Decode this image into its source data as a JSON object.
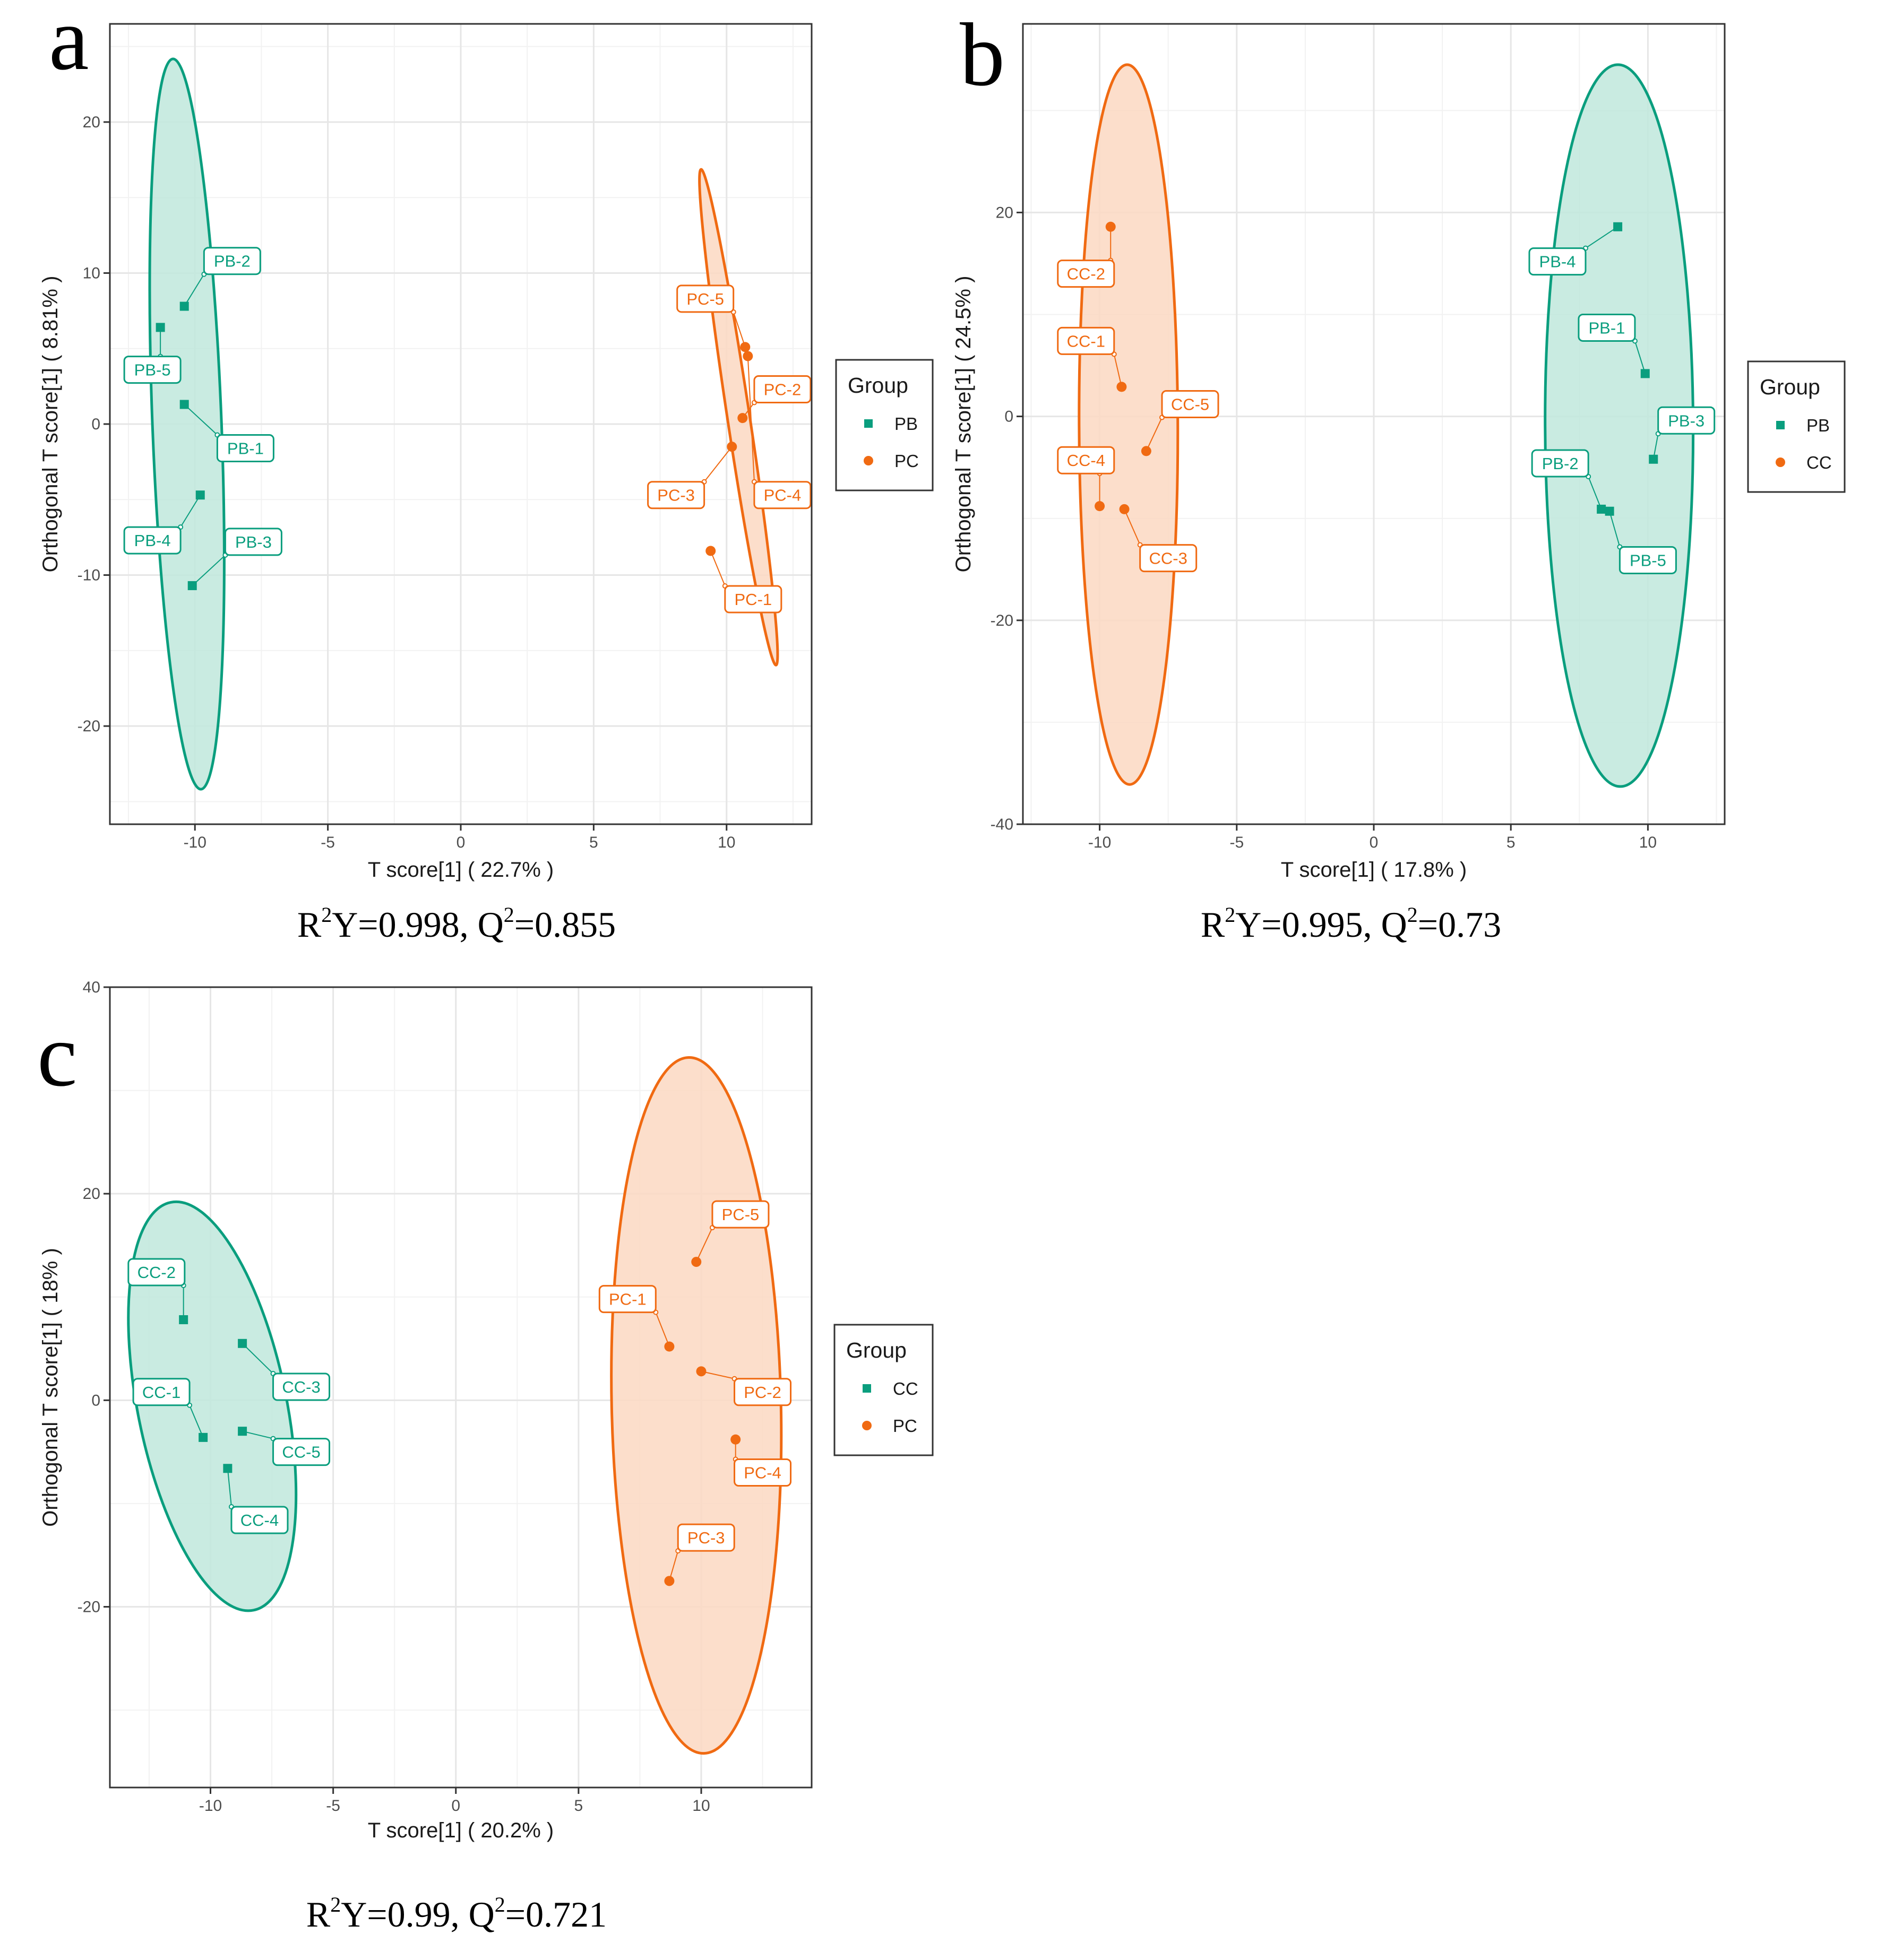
{
  "colors": {
    "teal": "#0a9e7e",
    "tealFill": "#bfe7dc",
    "orange": "#f06a12",
    "orangeFill": "#fcd8c2"
  },
  "chart_data": [
    {
      "type": "scatter",
      "letter": "a",
      "xlabel": "T score[1] ( 22.7% )",
      "ylabel": "Orthogonal T score[1] ( 8.81% )",
      "xlim": [
        -13.2,
        13.2
      ],
      "ylim": [
        -26.5,
        26.5
      ],
      "xticks": [
        -10,
        -5,
        0,
        5,
        10
      ],
      "yticks": [
        -20,
        -10,
        0,
        10,
        20
      ],
      "stats": {
        "r": "R",
        "sup1": "2",
        "mid": "Y=0.998, Q",
        "sup2": "2",
        "end": "=0.855"
      },
      "legend": {
        "title": "Group",
        "entries": [
          {
            "label": "PB",
            "color": "teal",
            "shape": "square"
          },
          {
            "label": "PC",
            "color": "orange",
            "shape": "circle"
          }
        ]
      },
      "ellipses": [
        {
          "group": "PB",
          "color": "teal",
          "cx": -10.3,
          "cy": 0.0,
          "rx": 1.3,
          "ry": 24.2,
          "angle": -2.2
        },
        {
          "group": "PC",
          "color": "orange",
          "cx": 10.45,
          "cy": 0.45,
          "rx": 0.42,
          "ry": 16.6,
          "angle": -8.6
        }
      ],
      "series": [
        {
          "name": "PB",
          "color": "teal",
          "shape": "square",
          "points": [
            {
              "label": "PB-1",
              "x": -10.4,
              "y": 1.3,
              "lx": -8.1,
              "ly": -1.6
            },
            {
              "label": "PB-2",
              "x": -10.4,
              "y": 7.8,
              "lx": -8.6,
              "ly": 10.8
            },
            {
              "label": "PB-3",
              "x": -10.1,
              "y": -10.7,
              "lx": -7.8,
              "ly": -7.8
            },
            {
              "label": "PB-4",
              "x": -9.8,
              "y": -4.7,
              "lx": -11.6,
              "ly": -7.7
            },
            {
              "label": "PB-5",
              "x": -11.3,
              "y": 6.4,
              "lx": -11.6,
              "ly": 3.6
            }
          ]
        },
        {
          "name": "PC",
          "color": "orange",
          "shape": "circle",
          "points": [
            {
              "label": "PC-1",
              "x": 9.4,
              "y": -8.4,
              "lx": 11.0,
              "ly": -11.6
            },
            {
              "label": "PC-2",
              "x": 10.6,
              "y": 0.4,
              "lx": 12.1,
              "ly": 2.3
            },
            {
              "label": "PC-3",
              "x": 10.2,
              "y": -1.5,
              "lx": 8.1,
              "ly": -4.7
            },
            {
              "label": "PC-4",
              "x": 10.8,
              "y": 4.5,
              "lx": 12.1,
              "ly": -4.7
            },
            {
              "label": "PC-5",
              "x": 10.7,
              "y": 5.1,
              "lx": 9.2,
              "ly": 8.3
            }
          ]
        }
      ]
    },
    {
      "type": "scatter",
      "letter": "b",
      "xlabel": "T score[1] ( 17.8% )",
      "ylabel": "Orthogonal T score[1] ( 24.5% )",
      "xlim": [
        -12.8,
        12.8
      ],
      "ylim": [
        -40.0,
        38.5
      ],
      "xticks": [
        -10,
        -5,
        0,
        5,
        10
      ],
      "yticks": [
        -40,
        -20,
        0,
        20
      ],
      "stats": {
        "r": "R",
        "sup1": "2",
        "mid": "Y=0.995, Q",
        "sup2": "2",
        "end": "=0.73"
      },
      "legend": {
        "title": "Group",
        "entries": [
          {
            "label": "PB",
            "color": "teal",
            "shape": "square"
          },
          {
            "label": "CC",
            "color": "orange",
            "shape": "circle"
          }
        ]
      },
      "ellipses": [
        {
          "group": "CC",
          "color": "orange",
          "cx": -8.95,
          "cy": -0.8,
          "rx": 1.8,
          "ry": 35.3,
          "angle": -0.2
        },
        {
          "group": "PB",
          "color": "teal",
          "cx": 8.95,
          "cy": -0.9,
          "rx": 2.7,
          "ry": 35.4,
          "angle": -0.2
        }
      ],
      "series": [
        {
          "name": "PB",
          "color": "teal",
          "shape": "square",
          "points": [
            {
              "label": "PB-1",
              "x": 9.9,
              "y": 4.2,
              "lx": 8.5,
              "ly": 8.7
            },
            {
              "label": "PB-2",
              "x": 8.3,
              "y": -9.1,
              "lx": 6.8,
              "ly": -4.6
            },
            {
              "label": "PB-3",
              "x": 10.2,
              "y": -4.2,
              "lx": 11.4,
              "ly": -0.4
            },
            {
              "label": "PB-4",
              "x": 8.9,
              "y": 18.6,
              "lx": 6.7,
              "ly": 15.2
            },
            {
              "label": "PB-5",
              "x": 8.6,
              "y": -9.3,
              "lx": 10.0,
              "ly": -14.1
            }
          ]
        },
        {
          "name": "CC",
          "color": "orange",
          "shape": "circle",
          "points": [
            {
              "label": "CC-1",
              "x": -9.2,
              "y": 2.9,
              "lx": -10.5,
              "ly": 7.4
            },
            {
              "label": "CC-2",
              "x": -9.6,
              "y": 18.6,
              "lx": -10.5,
              "ly": 14.0
            },
            {
              "label": "CC-3",
              "x": -9.1,
              "y": -9.1,
              "lx": -7.5,
              "ly": -13.9
            },
            {
              "label": "CC-4",
              "x": -10.0,
              "y": -8.8,
              "lx": -10.5,
              "ly": -4.3
            },
            {
              "label": "CC-5",
              "x": -8.3,
              "y": -3.4,
              "lx": -6.7,
              "ly": 1.2
            }
          ]
        }
      ]
    },
    {
      "type": "scatter",
      "letter": "c",
      "xlabel": "T score[1] ( 20.2% )",
      "ylabel": "Orthogonal T score[1] ( 18% )",
      "xlim": [
        -14.1,
        14.5
      ],
      "ylim": [
        -37.5,
        40.0
      ],
      "xticks": [
        -10,
        -5,
        0,
        5,
        10
      ],
      "yticks": [
        -20,
        0,
        20,
        40
      ],
      "stats": {
        "r": "R",
        "sup1": "2",
        "mid": "Y=0.99, Q",
        "sup2": "2",
        "end": "=0.721"
      },
      "legend": {
        "title": "Group",
        "entries": [
          {
            "label": "CC",
            "color": "teal",
            "shape": "square"
          },
          {
            "label": "PC",
            "color": "orange",
            "shape": "circle"
          }
        ]
      },
      "ellipses": [
        {
          "group": "CC",
          "color": "teal",
          "cx": -9.93,
          "cy": -0.58,
          "rx": 3.03,
          "ry": 20.15,
          "angle": -11.5
        },
        {
          "group": "PC",
          "color": "orange",
          "cx": 9.8,
          "cy": -0.5,
          "rx": 3.45,
          "ry": 33.7,
          "angle": -1.25
        }
      ],
      "series": [
        {
          "name": "CC",
          "color": "teal",
          "shape": "square",
          "points": [
            {
              "label": "CC-1",
              "x": -10.3,
              "y": -3.6,
              "lx": -12.0,
              "ly": 0.8
            },
            {
              "label": "CC-2",
              "x": -11.1,
              "y": 7.8,
              "lx": -12.2,
              "ly": 12.4
            },
            {
              "label": "CC-3",
              "x": -8.7,
              "y": 5.5,
              "lx": -6.3,
              "ly": 1.3
            },
            {
              "label": "CC-4",
              "x": -9.3,
              "y": -6.6,
              "lx": -8.0,
              "ly": -11.6
            },
            {
              "label": "CC-5",
              "x": -8.7,
              "y": -3.0,
              "lx": -6.3,
              "ly": -5.0
            }
          ]
        },
        {
          "name": "PC",
          "color": "orange",
          "shape": "circle",
          "points": [
            {
              "label": "PC-1",
              "x": 8.7,
              "y": 5.2,
              "lx": 7.0,
              "ly": 9.8
            },
            {
              "label": "PC-2",
              "x": 10.0,
              "y": 2.8,
              "lx": 12.5,
              "ly": 0.8
            },
            {
              "label": "PC-3",
              "x": 8.7,
              "y": -17.5,
              "lx": 10.2,
              "ly": -13.3
            },
            {
              "label": "PC-4",
              "x": 11.4,
              "y": -3.8,
              "lx": 12.5,
              "ly": -7.0
            },
            {
              "label": "PC-5",
              "x": 9.8,
              "y": 13.4,
              "lx": 11.6,
              "ly": 18.0
            }
          ]
        }
      ]
    }
  ]
}
